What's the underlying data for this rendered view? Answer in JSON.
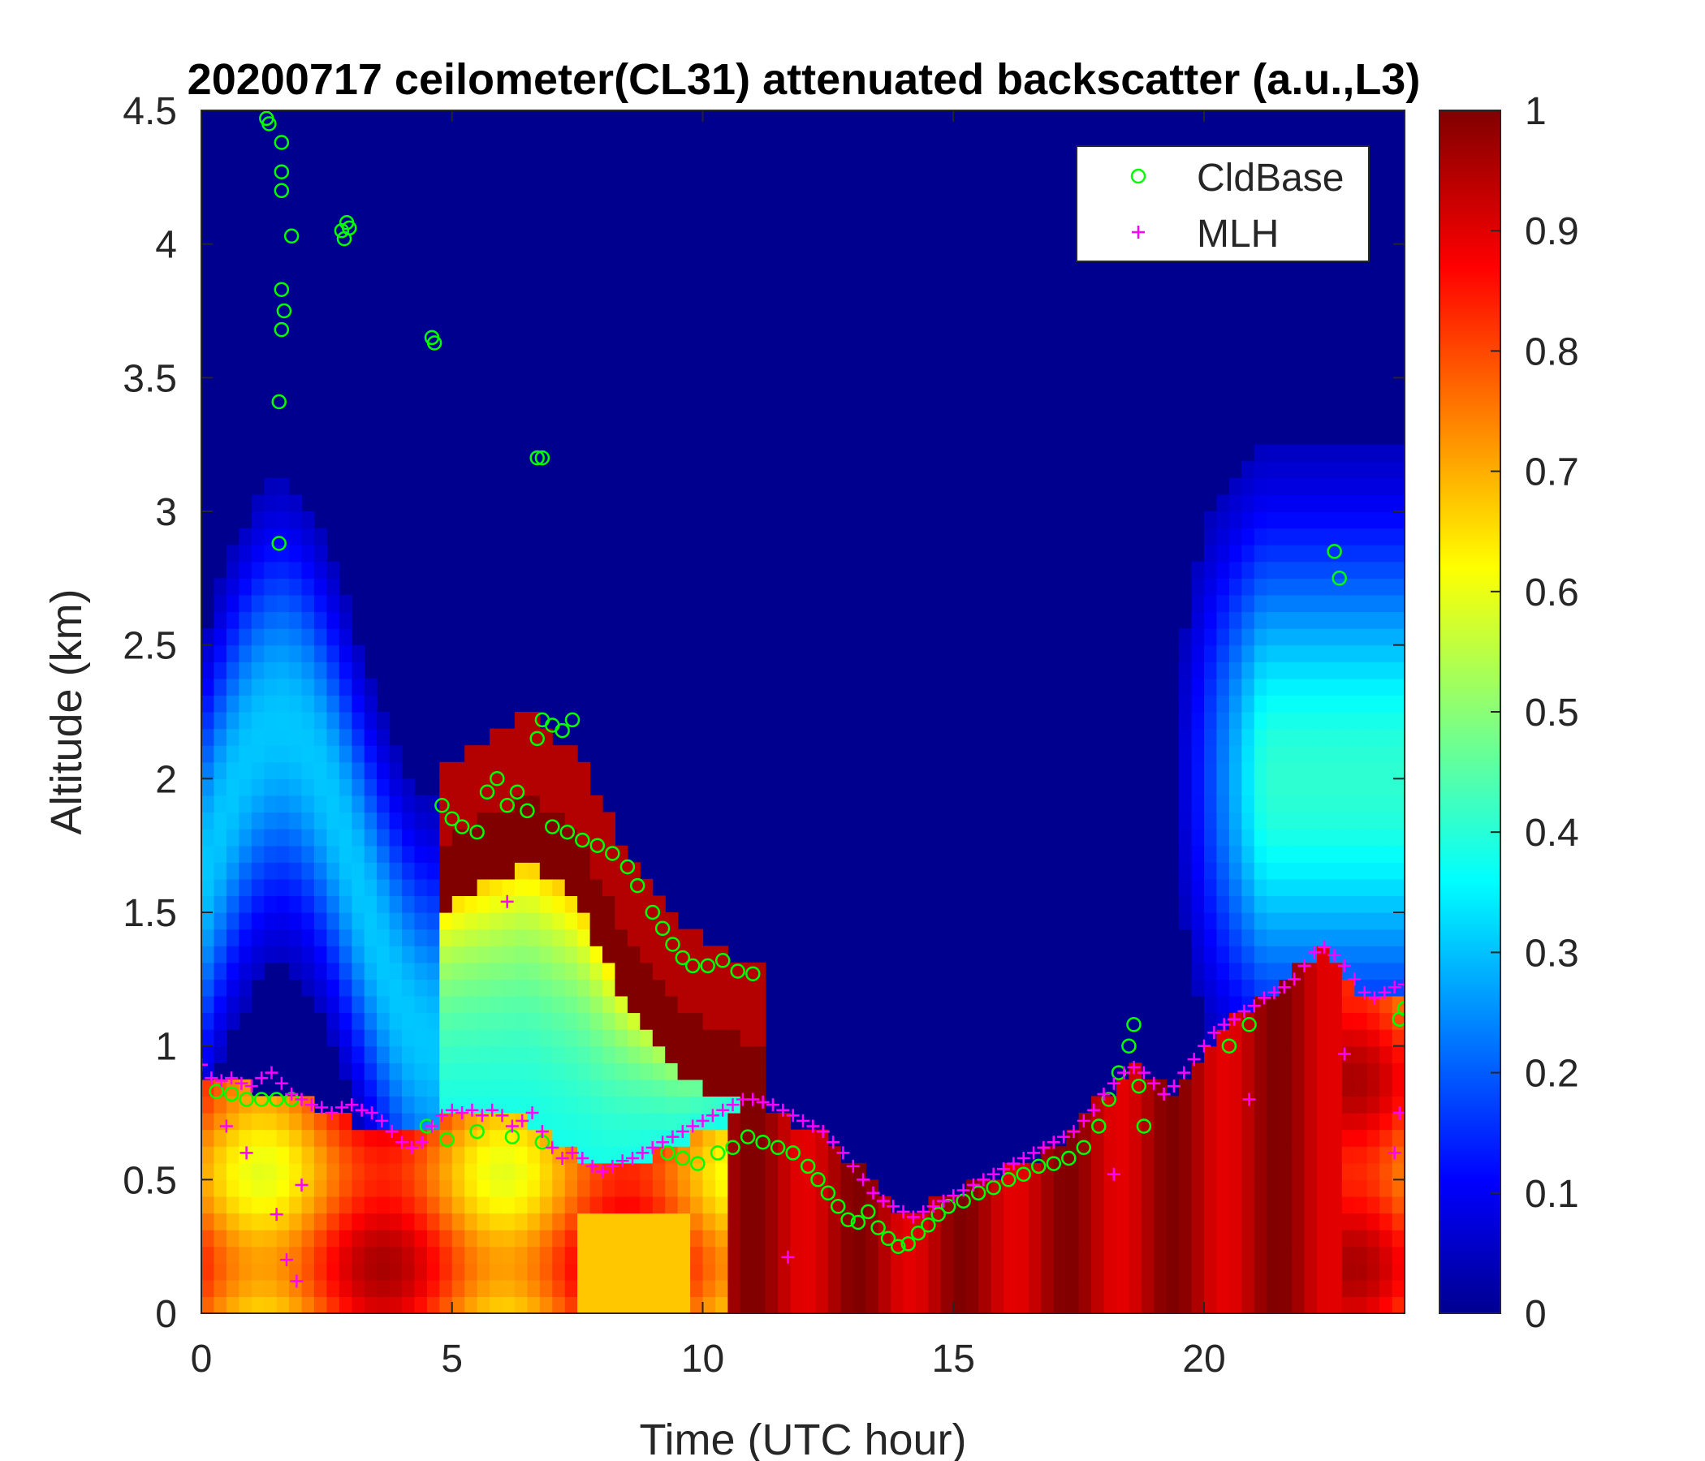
{
  "chart_data": {
    "type": "heatmap",
    "title": "20200717 ceilometer(CL31) attenuated backscatter (a.u.,L3)",
    "xlabel": "Time (UTC hour)",
    "ylabel": "Altitude (km)",
    "xlim": [
      0,
      24
    ],
    "ylim": [
      0,
      4.5
    ],
    "xticks": [
      0,
      5,
      10,
      15,
      20
    ],
    "yticks": [
      0,
      0.5,
      1,
      1.5,
      2,
      2.5,
      3,
      3.5,
      4,
      4.5
    ],
    "colorbar": {
      "colormap": "jet",
      "range": [
        0,
        1
      ],
      "ticks": [
        0,
        0.1,
        0.2,
        0.3,
        0.4,
        0.5,
        0.6,
        0.7,
        0.8,
        0.9,
        1
      ]
    },
    "legend": {
      "position": "top-right",
      "entries": [
        "CldBase",
        "MLH"
      ]
    },
    "series": [
      {
        "name": "CldBase",
        "marker": "circle",
        "color": "#00ff00",
        "points": [
          [
            1.3,
            4.47
          ],
          [
            1.35,
            4.45
          ],
          [
            1.6,
            4.38
          ],
          [
            1.6,
            4.27
          ],
          [
            1.6,
            4.2
          ],
          [
            1.8,
            4.03
          ],
          [
            1.6,
            3.83
          ],
          [
            1.65,
            3.75
          ],
          [
            1.6,
            3.68
          ],
          [
            1.55,
            3.41
          ],
          [
            1.55,
            2.88
          ],
          [
            2.8,
            4.05
          ],
          [
            2.85,
            4.02
          ],
          [
            2.9,
            4.08
          ],
          [
            2.95,
            4.06
          ],
          [
            4.6,
            3.65
          ],
          [
            4.65,
            3.63
          ],
          [
            6.7,
            3.2
          ],
          [
            6.8,
            3.2
          ],
          [
            4.8,
            1.9
          ],
          [
            5.0,
            1.85
          ],
          [
            5.2,
            1.82
          ],
          [
            5.5,
            1.8
          ],
          [
            5.7,
            1.95
          ],
          [
            5.9,
            2.0
          ],
          [
            6.1,
            1.9
          ],
          [
            6.3,
            1.95
          ],
          [
            6.5,
            1.88
          ],
          [
            6.7,
            2.15
          ],
          [
            6.8,
            2.22
          ],
          [
            7.0,
            2.2
          ],
          [
            7.2,
            2.18
          ],
          [
            7.4,
            2.22
          ],
          [
            7.0,
            1.82
          ],
          [
            7.3,
            1.8
          ],
          [
            7.6,
            1.77
          ],
          [
            7.9,
            1.75
          ],
          [
            8.2,
            1.72
          ],
          [
            8.5,
            1.67
          ],
          [
            8.7,
            1.6
          ],
          [
            9.0,
            1.5
          ],
          [
            9.2,
            1.44
          ],
          [
            9.4,
            1.38
          ],
          [
            9.6,
            1.33
          ],
          [
            9.8,
            1.3
          ],
          [
            10.1,
            1.3
          ],
          [
            10.4,
            1.32
          ],
          [
            10.7,
            1.28
          ],
          [
            11.0,
            1.27
          ],
          [
            0.3,
            0.83
          ],
          [
            0.6,
            0.82
          ],
          [
            0.9,
            0.8
          ],
          [
            1.2,
            0.8
          ],
          [
            1.5,
            0.8
          ],
          [
            1.8,
            0.8
          ],
          [
            4.5,
            0.7
          ],
          [
            4.9,
            0.65
          ],
          [
            5.5,
            0.68
          ],
          [
            6.2,
            0.66
          ],
          [
            6.8,
            0.64
          ],
          [
            9.3,
            0.6
          ],
          [
            9.6,
            0.58
          ],
          [
            9.9,
            0.56
          ],
          [
            10.3,
            0.6
          ],
          [
            10.6,
            0.62
          ],
          [
            10.9,
            0.66
          ],
          [
            11.2,
            0.64
          ],
          [
            11.5,
            0.62
          ],
          [
            11.8,
            0.6
          ],
          [
            12.1,
            0.55
          ],
          [
            12.3,
            0.5
          ],
          [
            12.5,
            0.45
          ],
          [
            12.7,
            0.4
          ],
          [
            12.9,
            0.35
          ],
          [
            13.1,
            0.34
          ],
          [
            13.3,
            0.38
          ],
          [
            13.5,
            0.32
          ],
          [
            13.7,
            0.28
          ],
          [
            13.9,
            0.25
          ],
          [
            14.1,
            0.26
          ],
          [
            14.3,
            0.3
          ],
          [
            14.5,
            0.33
          ],
          [
            14.7,
            0.37
          ],
          [
            14.9,
            0.4
          ],
          [
            15.2,
            0.42
          ],
          [
            15.5,
            0.45
          ],
          [
            15.8,
            0.47
          ],
          [
            16.1,
            0.5
          ],
          [
            16.4,
            0.52
          ],
          [
            16.7,
            0.55
          ],
          [
            17.0,
            0.56
          ],
          [
            17.3,
            0.58
          ],
          [
            17.6,
            0.62
          ],
          [
            17.9,
            0.7
          ],
          [
            18.1,
            0.8
          ],
          [
            18.3,
            0.9
          ],
          [
            18.5,
            1.0
          ],
          [
            18.6,
            1.08
          ],
          [
            18.7,
            0.85
          ],
          [
            18.8,
            0.7
          ],
          [
            20.5,
            1.0
          ],
          [
            20.9,
            1.08
          ],
          [
            22.6,
            2.85
          ],
          [
            22.7,
            2.75
          ],
          [
            23.9,
            1.1
          ],
          [
            24.0,
            1.14
          ]
        ]
      },
      {
        "name": "MLH",
        "marker": "plus",
        "color": "#ff00ff",
        "points": [
          [
            0.0,
            0.93
          ],
          [
            0.2,
            0.88
          ],
          [
            0.4,
            0.87
          ],
          [
            0.6,
            0.88
          ],
          [
            0.8,
            0.86
          ],
          [
            1.0,
            0.85
          ],
          [
            1.2,
            0.88
          ],
          [
            1.4,
            0.9
          ],
          [
            1.6,
            0.86
          ],
          [
            1.8,
            0.82
          ],
          [
            2.0,
            0.8
          ],
          [
            2.2,
            0.78
          ],
          [
            2.4,
            0.77
          ],
          [
            2.6,
            0.75
          ],
          [
            2.8,
            0.77
          ],
          [
            3.0,
            0.78
          ],
          [
            3.2,
            0.76
          ],
          [
            3.4,
            0.75
          ],
          [
            3.6,
            0.72
          ],
          [
            3.8,
            0.68
          ],
          [
            4.0,
            0.64
          ],
          [
            4.2,
            0.62
          ],
          [
            4.4,
            0.64
          ],
          [
            4.6,
            0.7
          ],
          [
            4.8,
            0.74
          ],
          [
            5.0,
            0.76
          ],
          [
            5.2,
            0.75
          ],
          [
            5.4,
            0.76
          ],
          [
            5.6,
            0.74
          ],
          [
            5.8,
            0.76
          ],
          [
            6.0,
            0.74
          ],
          [
            6.2,
            0.7
          ],
          [
            6.4,
            0.72
          ],
          [
            6.6,
            0.75
          ],
          [
            6.8,
            0.68
          ],
          [
            7.0,
            0.62
          ],
          [
            7.2,
            0.58
          ],
          [
            7.4,
            0.6
          ],
          [
            7.6,
            0.58
          ],
          [
            7.8,
            0.55
          ],
          [
            8.0,
            0.53
          ],
          [
            8.2,
            0.55
          ],
          [
            8.4,
            0.57
          ],
          [
            8.6,
            0.58
          ],
          [
            8.8,
            0.6
          ],
          [
            9.0,
            0.62
          ],
          [
            9.2,
            0.64
          ],
          [
            9.4,
            0.66
          ],
          [
            9.6,
            0.68
          ],
          [
            9.8,
            0.7
          ],
          [
            10.0,
            0.72
          ],
          [
            10.2,
            0.74
          ],
          [
            10.4,
            0.76
          ],
          [
            10.6,
            0.78
          ],
          [
            10.8,
            0.8
          ],
          [
            11.0,
            0.8
          ],
          [
            11.2,
            0.79
          ],
          [
            11.4,
            0.78
          ],
          [
            11.6,
            0.76
          ],
          [
            11.8,
            0.74
          ],
          [
            12.0,
            0.72
          ],
          [
            12.2,
            0.7
          ],
          [
            12.4,
            0.68
          ],
          [
            12.6,
            0.64
          ],
          [
            12.8,
            0.6
          ],
          [
            13.0,
            0.55
          ],
          [
            13.2,
            0.5
          ],
          [
            13.4,
            0.45
          ],
          [
            13.6,
            0.42
          ],
          [
            13.8,
            0.4
          ],
          [
            14.0,
            0.38
          ],
          [
            14.2,
            0.36
          ],
          [
            14.4,
            0.38
          ],
          [
            14.6,
            0.4
          ],
          [
            14.8,
            0.42
          ],
          [
            15.0,
            0.44
          ],
          [
            15.2,
            0.46
          ],
          [
            15.4,
            0.48
          ],
          [
            15.6,
            0.5
          ],
          [
            15.8,
            0.52
          ],
          [
            16.0,
            0.54
          ],
          [
            16.2,
            0.56
          ],
          [
            16.4,
            0.58
          ],
          [
            16.6,
            0.6
          ],
          [
            16.8,
            0.62
          ],
          [
            17.0,
            0.64
          ],
          [
            17.2,
            0.66
          ],
          [
            17.4,
            0.68
          ],
          [
            17.6,
            0.72
          ],
          [
            17.8,
            0.76
          ],
          [
            18.0,
            0.82
          ],
          [
            18.2,
            0.86
          ],
          [
            18.4,
            0.9
          ],
          [
            18.6,
            0.92
          ],
          [
            18.8,
            0.9
          ],
          [
            19.0,
            0.86
          ],
          [
            19.2,
            0.82
          ],
          [
            19.4,
            0.85
          ],
          [
            19.6,
            0.9
          ],
          [
            19.8,
            0.95
          ],
          [
            20.0,
            1.0
          ],
          [
            20.2,
            1.05
          ],
          [
            20.4,
            1.08
          ],
          [
            20.6,
            1.1
          ],
          [
            20.8,
            1.13
          ],
          [
            21.0,
            1.15
          ],
          [
            21.2,
            1.18
          ],
          [
            21.4,
            1.2
          ],
          [
            21.6,
            1.22
          ],
          [
            21.8,
            1.25
          ],
          [
            22.0,
            1.3
          ],
          [
            22.2,
            1.35
          ],
          [
            22.4,
            1.37
          ],
          [
            22.6,
            1.34
          ],
          [
            22.8,
            1.3
          ],
          [
            23.0,
            1.25
          ],
          [
            23.2,
            1.2
          ],
          [
            23.4,
            1.18
          ],
          [
            23.6,
            1.2
          ],
          [
            23.8,
            1.22
          ],
          [
            24.0,
            1.23
          ],
          [
            0.5,
            0.7
          ],
          [
            0.9,
            0.6
          ],
          [
            1.5,
            0.37
          ],
          [
            1.7,
            0.2
          ],
          [
            1.9,
            0.12
          ],
          [
            2.0,
            0.48
          ],
          [
            6.1,
            1.54
          ],
          [
            11.7,
            0.21
          ],
          [
            18.2,
            0.52
          ],
          [
            20.9,
            0.8
          ],
          [
            22.8,
            0.97
          ],
          [
            23.8,
            0.6
          ],
          [
            23.9,
            0.75
          ]
        ]
      }
    ]
  }
}
